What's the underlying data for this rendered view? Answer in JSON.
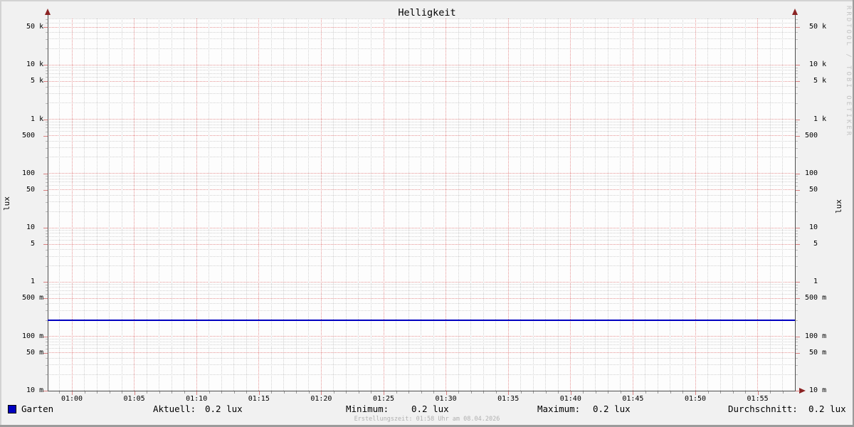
{
  "header": {
    "title": "Helligkeit"
  },
  "watermark": "RRDTOOL / TOBI OETIKER",
  "footer": {
    "created": "Erstellungszeit: 01:58 Uhr am 08.04.2026"
  },
  "colors": {
    "background": "#f1f1f1",
    "canvas": "#fdfdfd",
    "border_light": "#d3d3d3",
    "border_dark": "#9b9b9b",
    "grid_major": "#e79494",
    "grid_minor": "#d2d2d2",
    "axis": "#4f4f4f",
    "arrow": "#8b2323",
    "series_blue": "#0000c0",
    "footer_text": "#b0b0b0",
    "watermark_text": "#c3c3c3"
  },
  "axes": {
    "y_label_left": "lux",
    "y_label_right": "lux",
    "y_ticks": [
      {
        "value": 50000,
        "label": " 50 k"
      },
      {
        "value": 10000,
        "label": " 10 k"
      },
      {
        "value": 5000,
        "label": "  5 k"
      },
      {
        "value": 1000,
        "label": "  1 k"
      },
      {
        "value": 500,
        "label": "500"
      },
      {
        "value": 100,
        "label": "100"
      },
      {
        "value": 50,
        "label": " 50"
      },
      {
        "value": 10,
        "label": " 10"
      },
      {
        "value": 5,
        "label": "  5"
      },
      {
        "value": 1,
        "label": "  1"
      },
      {
        "value": 0.5,
        "label": "500 m"
      },
      {
        "value": 0.1,
        "label": "100 m"
      },
      {
        "value": 0.05,
        "label": " 50 m"
      },
      {
        "value": 0.01,
        "label": " 10 m"
      }
    ],
    "x_ticks": [
      {
        "minute": 60,
        "label": "01:00"
      },
      {
        "minute": 65,
        "label": "01:05"
      },
      {
        "minute": 70,
        "label": "01:10"
      },
      {
        "minute": 75,
        "label": "01:15"
      },
      {
        "minute": 80,
        "label": "01:20"
      },
      {
        "minute": 85,
        "label": "01:25"
      },
      {
        "minute": 90,
        "label": "01:30"
      },
      {
        "minute": 95,
        "label": "01:35"
      },
      {
        "minute": 100,
        "label": "01:40"
      },
      {
        "minute": 105,
        "label": "01:45"
      },
      {
        "minute": 110,
        "label": "01:50"
      },
      {
        "minute": 115,
        "label": "01:55"
      }
    ]
  },
  "legend": {
    "series_label": "Garten",
    "series_color": "#0000c0",
    "stats": [
      {
        "label": "Aktuell:",
        "value": "0.2 lux"
      },
      {
        "label": "Minimum:",
        "value": "0.2 lux"
      },
      {
        "label": "Maximum:",
        "value": "0.2 lux"
      },
      {
        "label": "Durchschnitt:",
        "value": "0.2 lux"
      }
    ]
  },
  "chart_data": {
    "type": "line",
    "title": "Helligkeit",
    "xlabel": "",
    "ylabel": "lux",
    "y_scale": "log",
    "ylim": [
      0.01,
      72000
    ],
    "xlim": [
      "00:58",
      "01:58"
    ],
    "grid": true,
    "legend_position": "bottom",
    "x_tick_labels": [
      "01:00",
      "01:05",
      "01:10",
      "01:15",
      "01:20",
      "01:25",
      "01:30",
      "01:35",
      "01:40",
      "01:45",
      "01:50",
      "01:55"
    ],
    "y_tick_labels": [
      "50 k",
      "10 k",
      "5 k",
      "1 k",
      "500",
      "100",
      "50",
      "10",
      "5",
      "1",
      "500 m",
      "100 m",
      "50 m",
      "10 m"
    ],
    "series": [
      {
        "name": "Garten",
        "color": "#0000c0",
        "unit": "lux",
        "value_constant": 0.2
      }
    ],
    "stats": {
      "aktuell": "0.2 lux",
      "minimum": "0.2 lux",
      "maximum": "0.2 lux",
      "durchschnitt": "0.2 lux"
    }
  }
}
